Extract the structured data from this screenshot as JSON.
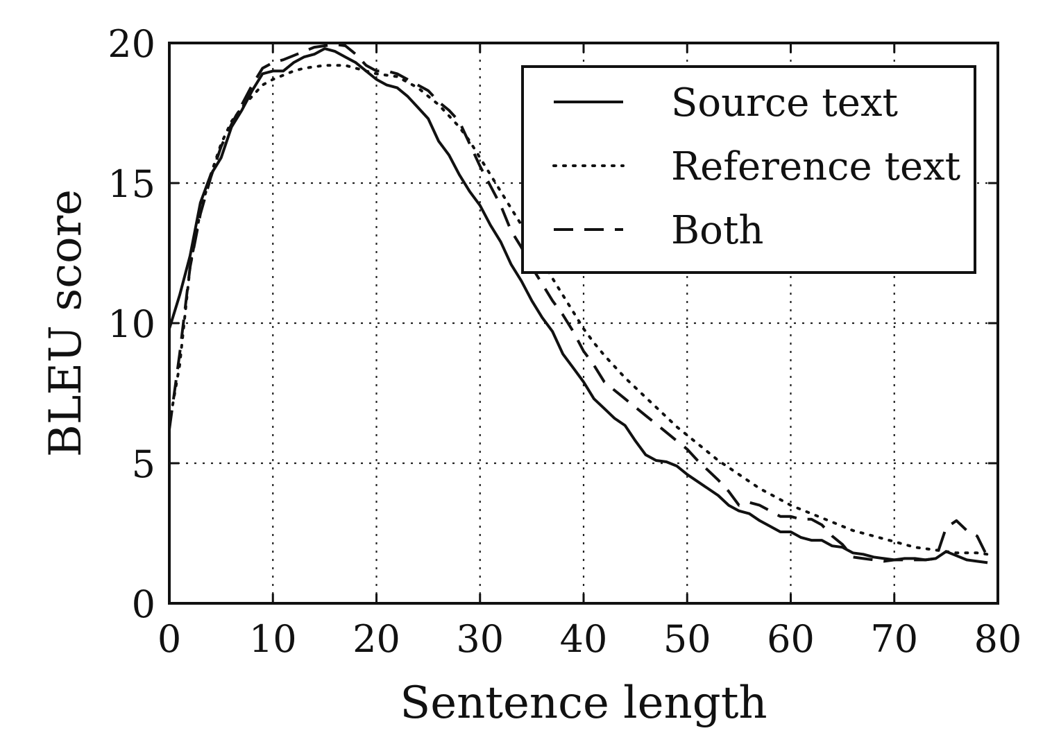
{
  "chart_data": {
    "type": "line",
    "xlabel": "Sentence length",
    "ylabel": "BLEU score",
    "xlim": [
      0,
      80
    ],
    "ylim": [
      0,
      20
    ],
    "xticks": [
      0,
      10,
      20,
      30,
      40,
      50,
      60,
      70,
      80
    ],
    "yticks": [
      0,
      5,
      10,
      15,
      20
    ],
    "grid": true,
    "legend_position": "top-right",
    "series": [
      {
        "name": "Source text",
        "style": "solid",
        "x": [
          0,
          1,
          2,
          3,
          4,
          5,
          6,
          7,
          8,
          9,
          10,
          11,
          12,
          13,
          14,
          15,
          16,
          17,
          18,
          19,
          20,
          21,
          22,
          23,
          24,
          25,
          26,
          27,
          28,
          29,
          30,
          31,
          32,
          33,
          34,
          35,
          36,
          37,
          38,
          39,
          40,
          41,
          42,
          43,
          44,
          45,
          46,
          47,
          48,
          49,
          50,
          51,
          52,
          53,
          54,
          55,
          56,
          57,
          58,
          59,
          60,
          61,
          62,
          63,
          64,
          65,
          66,
          67,
          68,
          69,
          70,
          71,
          72,
          73,
          74,
          75,
          76,
          77,
          78,
          79
        ],
        "y": [
          9.8,
          11,
          12.4,
          14.3,
          15.3,
          15.9,
          17,
          17.6,
          18.3,
          18.9,
          19,
          19,
          19.3,
          19.5,
          19.6,
          19.8,
          19.7,
          19.5,
          19.3,
          19,
          18.7,
          18.5,
          18.4,
          18.1,
          17.7,
          17.3,
          16.5,
          16,
          15.3,
          14.7,
          14.2,
          13.5,
          12.9,
          12.1,
          11.5,
          10.8,
          10.2,
          9.7,
          8.9,
          8.4,
          7.9,
          7.3,
          6.95,
          6.6,
          6.35,
          5.8,
          5.3,
          5.1,
          5.05,
          4.9,
          4.6,
          4.35,
          4.1,
          3.85,
          3.5,
          3.3,
          3.2,
          2.95,
          2.75,
          2.55,
          2.55,
          2.35,
          2.25,
          2.25,
          2.05,
          2,
          1.8,
          1.75,
          1.65,
          1.6,
          1.55,
          1.6,
          1.6,
          1.55,
          1.6,
          1.85,
          1.7,
          1.55,
          1.5,
          1.45
        ]
      },
      {
        "name": "Reference text",
        "style": "dotted",
        "x": [
          0,
          1,
          2,
          3,
          4,
          5,
          6,
          7,
          8,
          9,
          10,
          11,
          12,
          13,
          14,
          15,
          16,
          17,
          18,
          19,
          20,
          21,
          22,
          23,
          24,
          25,
          26,
          27,
          28,
          29,
          30,
          31,
          32,
          33,
          34,
          35,
          36,
          37,
          38,
          39,
          40,
          41,
          42,
          43,
          44,
          45,
          46,
          47,
          48,
          49,
          50,
          51,
          52,
          53,
          54,
          55,
          56,
          57,
          58,
          59,
          60,
          61,
          62,
          63,
          64,
          65,
          66,
          67,
          68,
          69,
          70,
          71,
          72,
          73,
          74,
          75,
          76,
          77,
          78,
          79
        ],
        "y": [
          6.4,
          8.5,
          12,
          14,
          15.3,
          16.4,
          17.2,
          17.7,
          18.1,
          18.5,
          18.7,
          18.85,
          19,
          19.1,
          19.15,
          19.2,
          19.2,
          19.2,
          19.1,
          19,
          18.9,
          18.85,
          18.8,
          18.6,
          18.4,
          18.1,
          17.8,
          17.4,
          17,
          16.5,
          15.9,
          15.3,
          14.7,
          14.1,
          13.5,
          12.9,
          12.2,
          11.6,
          11,
          10.4,
          9.8,
          9.3,
          8.85,
          8.45,
          8.05,
          7.7,
          7.35,
          7,
          6.65,
          6.3,
          6,
          5.7,
          5.4,
          5.1,
          4.85,
          4.6,
          4.35,
          4.1,
          3.9,
          3.7,
          3.5,
          3.35,
          3.2,
          3.05,
          2.9,
          2.75,
          2.6,
          2.5,
          2.4,
          2.3,
          2.2,
          2.1,
          2,
          1.95,
          1.9,
          1.85,
          1.8,
          1.8,
          1.8,
          1.75
        ]
      },
      {
        "name": "Both",
        "style": "dashed",
        "x": [
          0,
          1,
          2,
          3,
          4,
          5,
          6,
          7,
          8,
          9,
          10,
          11,
          12,
          13,
          14,
          15,
          16,
          17,
          18,
          19,
          20,
          21,
          22,
          23,
          24,
          25,
          26,
          27,
          28,
          29,
          30,
          31,
          32,
          33,
          34,
          35,
          36,
          37,
          38,
          39,
          40,
          41,
          42,
          43,
          44,
          45,
          46,
          47,
          48,
          49,
          50,
          51,
          52,
          53,
          54,
          55,
          56,
          57,
          58,
          59,
          60,
          61,
          62,
          63,
          64,
          65,
          66,
          67,
          68,
          69,
          70,
          71,
          72,
          73,
          74,
          75,
          76,
          77,
          78,
          79
        ],
        "y": [
          6.2,
          8.9,
          12,
          13.9,
          15.2,
          16.3,
          17.1,
          17.8,
          18.5,
          19.1,
          19.3,
          19.4,
          19.55,
          19.7,
          19.85,
          19.9,
          19.95,
          19.9,
          19.6,
          19.2,
          19,
          19,
          18.9,
          18.7,
          18.5,
          18.3,
          17.9,
          17.6,
          17.2,
          16.4,
          15.6,
          14.9,
          14.2,
          13.3,
          12.7,
          12,
          11.4,
          10.8,
          10.3,
          9.7,
          9,
          8.5,
          7.9,
          7.6,
          7.3,
          7,
          6.7,
          6.4,
          6.1,
          5.8,
          5.5,
          5.1,
          4.75,
          4.4,
          4,
          3.5,
          3.6,
          3.5,
          3.3,
          3.1,
          3.1,
          3,
          3,
          2.8,
          2.4,
          2.1,
          1.65,
          1.6,
          1.55,
          1.5,
          1.55,
          1.55,
          1.55,
          1.55,
          1.6,
          2.7,
          2.95,
          2.6,
          2.4,
          1.65
        ]
      }
    ]
  }
}
